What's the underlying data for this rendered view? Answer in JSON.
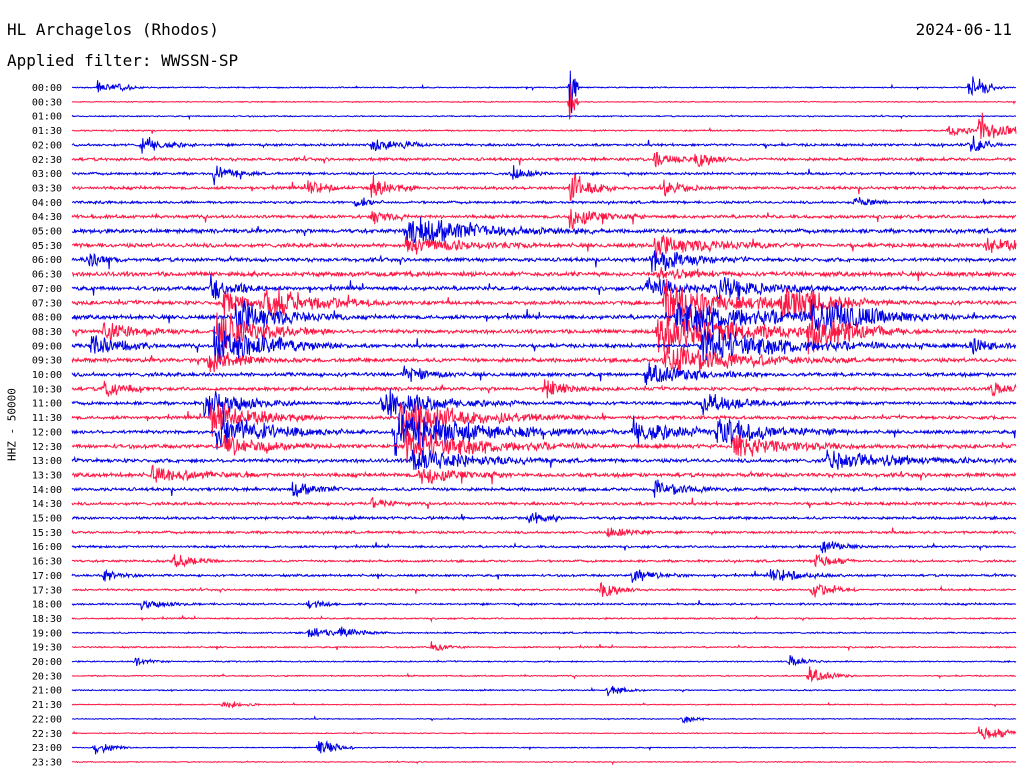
{
  "header": {
    "station": "HL Archagelos (Rhodos)",
    "date": "2024-06-11",
    "filter": "Applied filter: WWSSN-SP",
    "channel": "HHZ - 50000"
  },
  "colors": {
    "blue": "#0000e6",
    "red": "#ff1744"
  },
  "chart_data": {
    "type": "line",
    "subtype": "helicorder",
    "time_labels": [
      "00:00",
      "00:30",
      "01:00",
      "01:30",
      "02:00",
      "02:30",
      "03:00",
      "03:30",
      "04:00",
      "04:30",
      "05:00",
      "05:30",
      "06:00",
      "06:30",
      "07:00",
      "07:30",
      "08:00",
      "08:30",
      "09:00",
      "09:30",
      "10:00",
      "10:30",
      "11:00",
      "11:30",
      "12:00",
      "12:30",
      "13:00",
      "13:30",
      "14:00",
      "14:30",
      "15:00",
      "15:30",
      "16:00",
      "16:30",
      "17:00",
      "17:30",
      "18:00",
      "18:30",
      "19:00",
      "19:30",
      "20:00",
      "20:30",
      "21:00",
      "21:30",
      "22:00",
      "22:30",
      "23:00",
      "23:30"
    ],
    "series_colors": [
      "blue",
      "red"
    ],
    "noise_level": [
      0.5,
      0.4,
      0.5,
      0.6,
      1.0,
      1.2,
      1.0,
      1.2,
      1.0,
      1.3,
      1.6,
      1.6,
      1.5,
      1.8,
      1.6,
      1.6,
      1.6,
      1.6,
      1.5,
      1.6,
      1.5,
      1.4,
      1.3,
      1.3,
      1.4,
      1.6,
      1.5,
      1.6,
      1.3,
      1.2,
      1.1,
      1.0,
      0.9,
      0.9,
      0.9,
      0.8,
      0.8,
      0.6,
      0.6,
      0.6,
      0.5,
      0.5,
      0.5,
      0.4,
      0.4,
      0.4,
      0.4,
      0.4
    ],
    "events": [
      {
        "line": 0,
        "minute": 0.8,
        "amp": 8,
        "dur": 0.4
      },
      {
        "line": 0,
        "minute": 1.4,
        "amp": 6,
        "dur": 0.3
      },
      {
        "line": 0,
        "minute": 15.8,
        "amp": 60,
        "dur": 0.1
      },
      {
        "line": 1,
        "minute": 15.8,
        "amp": 40,
        "dur": 0.1
      },
      {
        "line": 0,
        "minute": 28.5,
        "amp": 20,
        "dur": 0.4
      },
      {
        "line": 3,
        "minute": 28.8,
        "amp": 20,
        "dur": 0.6
      },
      {
        "line": 3,
        "minute": 27.8,
        "amp": 6,
        "dur": 1.0
      },
      {
        "line": 4,
        "minute": 2.2,
        "amp": 12,
        "dur": 0.6
      },
      {
        "line": 4,
        "minute": 9.5,
        "amp": 10,
        "dur": 0.5
      },
      {
        "line": 4,
        "minute": 10.5,
        "amp": 5,
        "dur": 0.3
      },
      {
        "line": 4,
        "minute": 28.5,
        "amp": 14,
        "dur": 0.4
      },
      {
        "line": 5,
        "minute": 18.5,
        "amp": 12,
        "dur": 0.4
      },
      {
        "line": 5,
        "minute": 19.8,
        "amp": 10,
        "dur": 0.5
      },
      {
        "line": 6,
        "minute": 4.5,
        "amp": 12,
        "dur": 0.5
      },
      {
        "line": 6,
        "minute": 14.0,
        "amp": 10,
        "dur": 0.4
      },
      {
        "line": 7,
        "minute": 7.5,
        "amp": 12,
        "dur": 0.4
      },
      {
        "line": 7,
        "minute": 9.5,
        "amp": 14,
        "dur": 0.5
      },
      {
        "line": 7,
        "minute": 15.8,
        "amp": 20,
        "dur": 0.6
      },
      {
        "line": 7,
        "minute": 18.8,
        "amp": 12,
        "dur": 0.5
      },
      {
        "line": 8,
        "minute": 9.0,
        "amp": 8,
        "dur": 0.3
      },
      {
        "line": 8,
        "minute": 24.8,
        "amp": 8,
        "dur": 0.4
      },
      {
        "line": 9,
        "minute": 15.8,
        "amp": 14,
        "dur": 0.8
      },
      {
        "line": 9,
        "minute": 9.5,
        "amp": 10,
        "dur": 0.4
      },
      {
        "line": 10,
        "minute": 10.6,
        "amp": 20,
        "dur": 2.0
      },
      {
        "line": 11,
        "minute": 10.6,
        "amp": 12,
        "dur": 1.4
      },
      {
        "line": 11,
        "minute": 18.5,
        "amp": 12,
        "dur": 1.6
      },
      {
        "line": 11,
        "minute": 29.0,
        "amp": 10,
        "dur": 1.0
      },
      {
        "line": 12,
        "minute": 18.4,
        "amp": 16,
        "dur": 1.0
      },
      {
        "line": 12,
        "minute": 0.5,
        "amp": 10,
        "dur": 0.4
      },
      {
        "line": 13,
        "minute": 18.6,
        "amp": 8,
        "dur": 0.8
      },
      {
        "line": 14,
        "minute": 4.4,
        "amp": 20,
        "dur": 0.6
      },
      {
        "line": 14,
        "minute": 18.2,
        "amp": 14,
        "dur": 1.2
      },
      {
        "line": 14,
        "minute": 20.5,
        "amp": 14,
        "dur": 1.4
      },
      {
        "line": 15,
        "minute": 4.8,
        "amp": 16,
        "dur": 0.6
      },
      {
        "line": 15,
        "minute": 6.0,
        "amp": 22,
        "dur": 1.4
      },
      {
        "line": 15,
        "minute": 18.8,
        "amp": 26,
        "dur": 2.0
      },
      {
        "line": 15,
        "minute": 22.5,
        "amp": 24,
        "dur": 1.2
      },
      {
        "line": 16,
        "minute": 5.2,
        "amp": 22,
        "dur": 1.2
      },
      {
        "line": 16,
        "minute": 19.2,
        "amp": 24,
        "dur": 2.4
      },
      {
        "line": 16,
        "minute": 23.5,
        "amp": 22,
        "dur": 1.6
      },
      {
        "line": 17,
        "minute": 4.6,
        "amp": 26,
        "dur": 1.2
      },
      {
        "line": 17,
        "minute": 1.0,
        "amp": 12,
        "dur": 0.8
      },
      {
        "line": 17,
        "minute": 18.6,
        "amp": 26,
        "dur": 2.4
      },
      {
        "line": 17,
        "minute": 23.4,
        "amp": 26,
        "dur": 1.2
      },
      {
        "line": 18,
        "minute": 4.5,
        "amp": 30,
        "dur": 1.4
      },
      {
        "line": 18,
        "minute": 0.6,
        "amp": 14,
        "dur": 0.8
      },
      {
        "line": 18,
        "minute": 20.0,
        "amp": 22,
        "dur": 2.4
      },
      {
        "line": 18,
        "minute": 28.5,
        "amp": 10,
        "dur": 0.6
      },
      {
        "line": 19,
        "minute": 4.3,
        "amp": 16,
        "dur": 0.8
      },
      {
        "line": 19,
        "minute": 18.8,
        "amp": 20,
        "dur": 2.0
      },
      {
        "line": 20,
        "minute": 18.2,
        "amp": 14,
        "dur": 1.4
      },
      {
        "line": 20,
        "minute": 10.5,
        "amp": 10,
        "dur": 0.6
      },
      {
        "line": 21,
        "minute": 1.0,
        "amp": 10,
        "dur": 0.6
      },
      {
        "line": 21,
        "minute": 15.0,
        "amp": 12,
        "dur": 0.6
      },
      {
        "line": 21,
        "minute": 29.2,
        "amp": 8,
        "dur": 0.6
      },
      {
        "line": 22,
        "minute": 4.2,
        "amp": 20,
        "dur": 1.0
      },
      {
        "line": 22,
        "minute": 9.8,
        "amp": 18,
        "dur": 1.6
      },
      {
        "line": 22,
        "minute": 20.0,
        "amp": 14,
        "dur": 1.0
      },
      {
        "line": 23,
        "minute": 4.4,
        "amp": 22,
        "dur": 1.2
      },
      {
        "line": 23,
        "minute": 10.4,
        "amp": 22,
        "dur": 2.0
      },
      {
        "line": 24,
        "minute": 4.6,
        "amp": 24,
        "dur": 1.4
      },
      {
        "line": 24,
        "minute": 10.2,
        "amp": 26,
        "dur": 2.4
      },
      {
        "line": 24,
        "minute": 17.8,
        "amp": 18,
        "dur": 1.2
      },
      {
        "line": 24,
        "minute": 20.5,
        "amp": 18,
        "dur": 1.4
      },
      {
        "line": 25,
        "minute": 4.8,
        "amp": 16,
        "dur": 1.0
      },
      {
        "line": 25,
        "minute": 10.6,
        "amp": 22,
        "dur": 2.0
      },
      {
        "line": 25,
        "minute": 21.0,
        "amp": 14,
        "dur": 1.4
      },
      {
        "line": 26,
        "minute": 10.8,
        "amp": 16,
        "dur": 1.6
      },
      {
        "line": 26,
        "minute": 24.0,
        "amp": 12,
        "dur": 2.0
      },
      {
        "line": 27,
        "minute": 2.5,
        "amp": 10,
        "dur": 1.2
      },
      {
        "line": 27,
        "minute": 11.0,
        "amp": 12,
        "dur": 1.0
      },
      {
        "line": 28,
        "minute": 7.0,
        "amp": 10,
        "dur": 0.6
      },
      {
        "line": 28,
        "minute": 18.5,
        "amp": 10,
        "dur": 0.8
      },
      {
        "line": 29,
        "minute": 9.5,
        "amp": 8,
        "dur": 0.4
      },
      {
        "line": 30,
        "minute": 14.5,
        "amp": 8,
        "dur": 0.4
      },
      {
        "line": 31,
        "minute": 17.0,
        "amp": 8,
        "dur": 0.6
      },
      {
        "line": 32,
        "minute": 23.8,
        "amp": 10,
        "dur": 0.5
      },
      {
        "line": 33,
        "minute": 3.2,
        "amp": 10,
        "dur": 0.5
      },
      {
        "line": 33,
        "minute": 23.6,
        "amp": 10,
        "dur": 0.5
      },
      {
        "line": 34,
        "minute": 1.0,
        "amp": 8,
        "dur": 0.5
      },
      {
        "line": 34,
        "minute": 17.8,
        "amp": 10,
        "dur": 0.6
      },
      {
        "line": 34,
        "minute": 22.2,
        "amp": 10,
        "dur": 0.8
      },
      {
        "line": 35,
        "minute": 16.8,
        "amp": 10,
        "dur": 0.5
      },
      {
        "line": 35,
        "minute": 23.5,
        "amp": 10,
        "dur": 0.5
      },
      {
        "line": 36,
        "minute": 2.2,
        "amp": 6,
        "dur": 0.6
      },
      {
        "line": 36,
        "minute": 7.5,
        "amp": 6,
        "dur": 0.4
      },
      {
        "line": 38,
        "minute": 7.5,
        "amp": 10,
        "dur": 0.5
      },
      {
        "line": 38,
        "minute": 8.5,
        "amp": 8,
        "dur": 0.5
      },
      {
        "line": 39,
        "minute": 11.4,
        "amp": 8,
        "dur": 0.4
      },
      {
        "line": 40,
        "minute": 2.0,
        "amp": 6,
        "dur": 0.4
      },
      {
        "line": 40,
        "minute": 22.8,
        "amp": 8,
        "dur": 0.4
      },
      {
        "line": 41,
        "minute": 23.4,
        "amp": 12,
        "dur": 0.5
      },
      {
        "line": 42,
        "minute": 17.0,
        "amp": 8,
        "dur": 0.4
      },
      {
        "line": 43,
        "minute": 4.8,
        "amp": 8,
        "dur": 0.4
      },
      {
        "line": 44,
        "minute": 19.4,
        "amp": 6,
        "dur": 0.3
      },
      {
        "line": 45,
        "minute": 28.8,
        "amp": 10,
        "dur": 0.8
      },
      {
        "line": 46,
        "minute": 0.7,
        "amp": 10,
        "dur": 0.4
      },
      {
        "line": 46,
        "minute": 7.8,
        "amp": 14,
        "dur": 0.4
      }
    ]
  }
}
